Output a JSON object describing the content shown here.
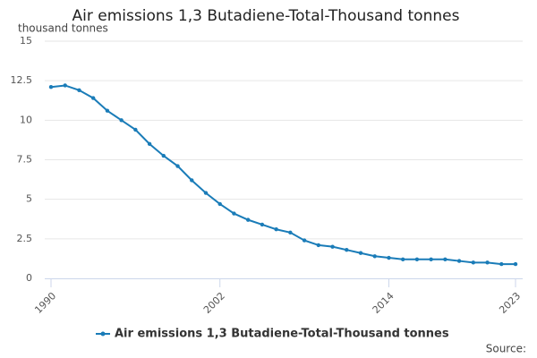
{
  "chart_data": {
    "type": "line",
    "title": "Air emissions 1,3 Butadiene-Total-Thousand tonnes",
    "y_label": "thousand tonnes",
    "source": "Source:",
    "x": [
      1990,
      1991,
      1992,
      1993,
      1994,
      1995,
      1996,
      1997,
      1998,
      1999,
      2000,
      2001,
      2002,
      2003,
      2004,
      2005,
      2006,
      2007,
      2008,
      2009,
      2010,
      2011,
      2012,
      2013,
      2014,
      2015,
      2016,
      2017,
      2018,
      2019,
      2020,
      2021,
      2022,
      2023
    ],
    "series": [
      {
        "name": "Air emissions 1,3 Butadiene-Total-Thousand tonnes",
        "color": "#1a7cb8",
        "values": [
          12.1,
          12.2,
          11.9,
          11.4,
          10.6,
          10.0,
          9.4,
          8.5,
          7.75,
          7.1,
          6.2,
          5.4,
          4.7,
          4.1,
          3.7,
          3.4,
          3.1,
          2.9,
          2.4,
          2.1,
          2.0,
          1.8,
          1.6,
          1.4,
          1.3,
          1.2,
          1.2,
          1.2,
          1.2,
          1.1,
          1.0,
          1.0,
          0.9,
          0.9
        ]
      }
    ],
    "xlim": [
      1990,
      2023
    ],
    "xticks": [
      1990,
      2002,
      2014,
      2023
    ],
    "ylim": [
      0,
      15
    ],
    "yticks": [
      0,
      2.5,
      5,
      7.5,
      10,
      12.5,
      15
    ],
    "grid": true,
    "legend": "bottom"
  }
}
